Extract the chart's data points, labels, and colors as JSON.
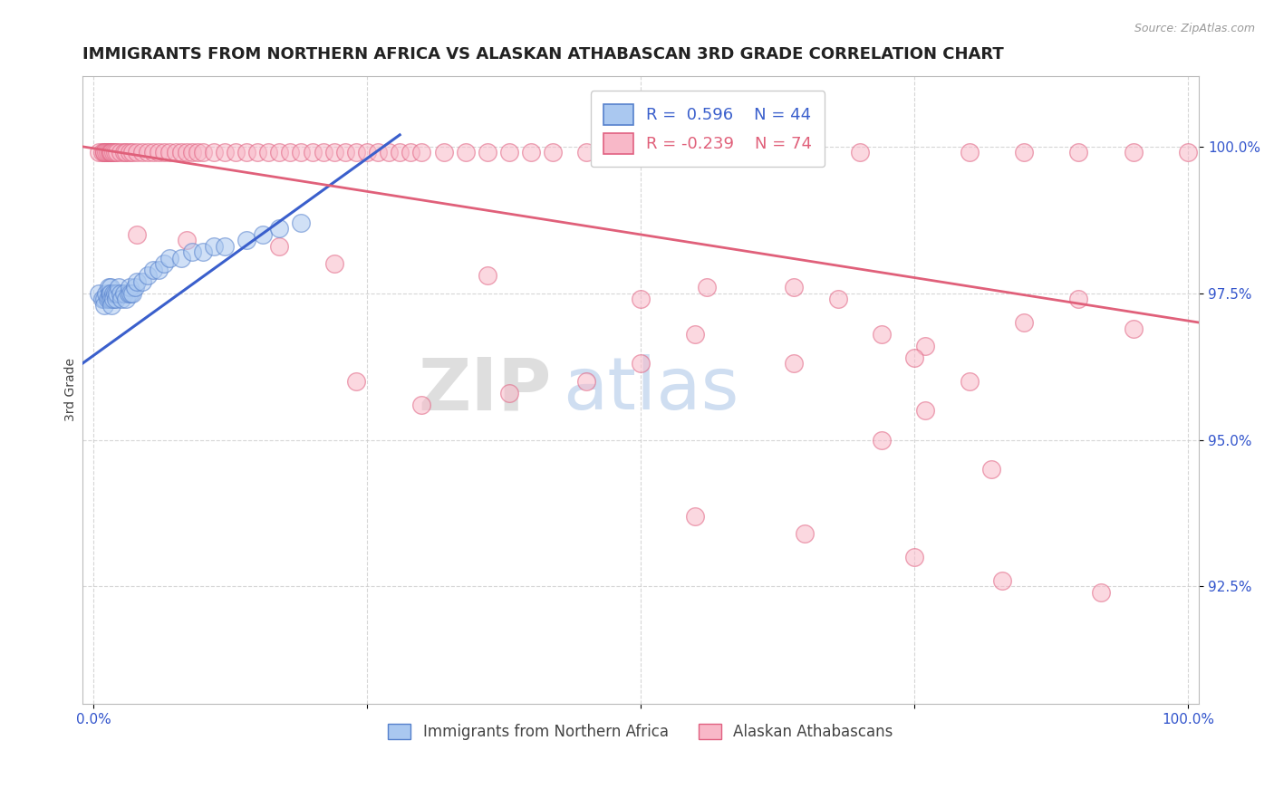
{
  "title": "IMMIGRANTS FROM NORTHERN AFRICA VS ALASKAN ATHABASCAN 3RD GRADE CORRELATION CHART",
  "source_text": "Source: ZipAtlas.com",
  "ylabel": "3rd Grade",
  "x_ticks": [
    0.0,
    0.25,
    0.5,
    0.75,
    1.0
  ],
  "x_tick_labels": [
    "0.0%",
    "",
    "",
    "",
    "100.0%"
  ],
  "y_ticks": [
    0.925,
    0.95,
    0.975,
    1.0
  ],
  "y_tick_labels": [
    "92.5%",
    "95.0%",
    "97.5%",
    "100.0%"
  ],
  "ylim": [
    0.905,
    1.012
  ],
  "xlim": [
    -0.01,
    1.01
  ],
  "blue_R": 0.596,
  "blue_N": 44,
  "pink_R": -0.239,
  "pink_N": 74,
  "blue_label": "Immigrants from Northern Africa",
  "pink_label": "Alaskan Athabascans",
  "blue_color": "#aac8f0",
  "pink_color": "#f8b8c8",
  "blue_edge_color": "#5580cc",
  "pink_edge_color": "#e06080",
  "blue_line_color": "#3a5fcc",
  "pink_line_color": "#e0607a",
  "background_color": "#ffffff",
  "watermark_zip": "ZIP",
  "watermark_atlas": "atlas",
  "title_fontsize": 13,
  "axis_label_fontsize": 10,
  "tick_fontsize": 11,
  "blue_x": [
    0.005,
    0.008,
    0.01,
    0.01,
    0.012,
    0.013,
    0.014,
    0.015,
    0.015,
    0.016,
    0.016,
    0.017,
    0.017,
    0.018,
    0.018,
    0.02,
    0.021,
    0.022,
    0.023,
    0.025,
    0.026,
    0.028,
    0.03,
    0.032,
    0.033,
    0.034,
    0.036,
    0.038,
    0.04,
    0.045,
    0.05,
    0.055,
    0.06,
    0.065,
    0.07,
    0.08,
    0.09,
    0.1,
    0.11,
    0.12,
    0.14,
    0.155,
    0.17,
    0.19
  ],
  "blue_y": [
    0.975,
    0.974,
    0.974,
    0.973,
    0.975,
    0.974,
    0.976,
    0.975,
    0.974,
    0.976,
    0.975,
    0.974,
    0.973,
    0.975,
    0.974,
    0.975,
    0.974,
    0.975,
    0.976,
    0.975,
    0.974,
    0.975,
    0.974,
    0.975,
    0.976,
    0.975,
    0.975,
    0.976,
    0.977,
    0.977,
    0.978,
    0.979,
    0.979,
    0.98,
    0.981,
    0.981,
    0.982,
    0.982,
    0.983,
    0.983,
    0.984,
    0.985,
    0.986,
    0.987
  ],
  "pink_x_top": [
    0.005,
    0.008,
    0.01,
    0.01,
    0.012,
    0.013,
    0.015,
    0.016,
    0.017,
    0.018,
    0.02,
    0.022,
    0.025,
    0.028,
    0.03,
    0.033,
    0.036,
    0.04,
    0.045,
    0.05,
    0.055,
    0.06,
    0.065,
    0.07,
    0.075,
    0.08,
    0.085,
    0.09,
    0.095,
    0.1,
    0.11,
    0.12,
    0.13,
    0.14,
    0.15,
    0.16,
    0.17,
    0.18,
    0.19,
    0.2,
    0.21,
    0.22,
    0.23,
    0.24,
    0.25,
    0.26,
    0.27,
    0.28,
    0.29,
    0.3,
    0.32,
    0.34,
    0.36,
    0.38,
    0.4,
    0.42,
    0.45,
    0.5,
    0.55,
    0.6,
    0.65,
    0.7,
    0.8,
    0.85,
    0.9,
    0.95,
    1.0
  ],
  "pink_y_top": [
    0.999,
    0.999,
    0.999,
    0.999,
    0.999,
    0.999,
    0.999,
    0.999,
    0.999,
    0.999,
    0.999,
    0.999,
    0.999,
    0.999,
    0.999,
    0.999,
    0.999,
    0.999,
    0.999,
    0.999,
    0.999,
    0.999,
    0.999,
    0.999,
    0.999,
    0.999,
    0.999,
    0.999,
    0.999,
    0.999,
    0.999,
    0.999,
    0.999,
    0.999,
    0.999,
    0.999,
    0.999,
    0.999,
    0.999,
    0.999,
    0.999,
    0.999,
    0.999,
    0.999,
    0.999,
    0.999,
    0.999,
    0.999,
    0.999,
    0.999,
    0.999,
    0.999,
    0.999,
    0.999,
    0.999,
    0.999,
    0.999,
    0.999,
    0.999,
    0.999,
    0.999,
    0.999,
    0.999,
    0.999,
    0.999,
    0.999,
    0.999
  ],
  "pink_scattered_x": [
    0.04,
    0.085,
    0.17,
    0.22,
    0.36,
    0.5,
    0.56,
    0.64,
    0.68,
    0.72,
    0.76,
    0.8,
    0.85,
    0.9,
    0.95,
    0.72,
    0.75,
    0.55,
    0.64,
    0.5,
    0.45,
    0.38,
    0.3,
    0.24,
    0.55,
    0.65,
    0.75,
    0.83,
    0.92,
    0.76,
    0.82
  ],
  "pink_scattered_y": [
    0.985,
    0.984,
    0.983,
    0.98,
    0.978,
    0.974,
    0.976,
    0.976,
    0.974,
    0.968,
    0.966,
    0.96,
    0.97,
    0.974,
    0.969,
    0.95,
    0.964,
    0.968,
    0.963,
    0.963,
    0.96,
    0.958,
    0.956,
    0.96,
    0.937,
    0.934,
    0.93,
    0.926,
    0.924,
    0.955,
    0.945
  ]
}
